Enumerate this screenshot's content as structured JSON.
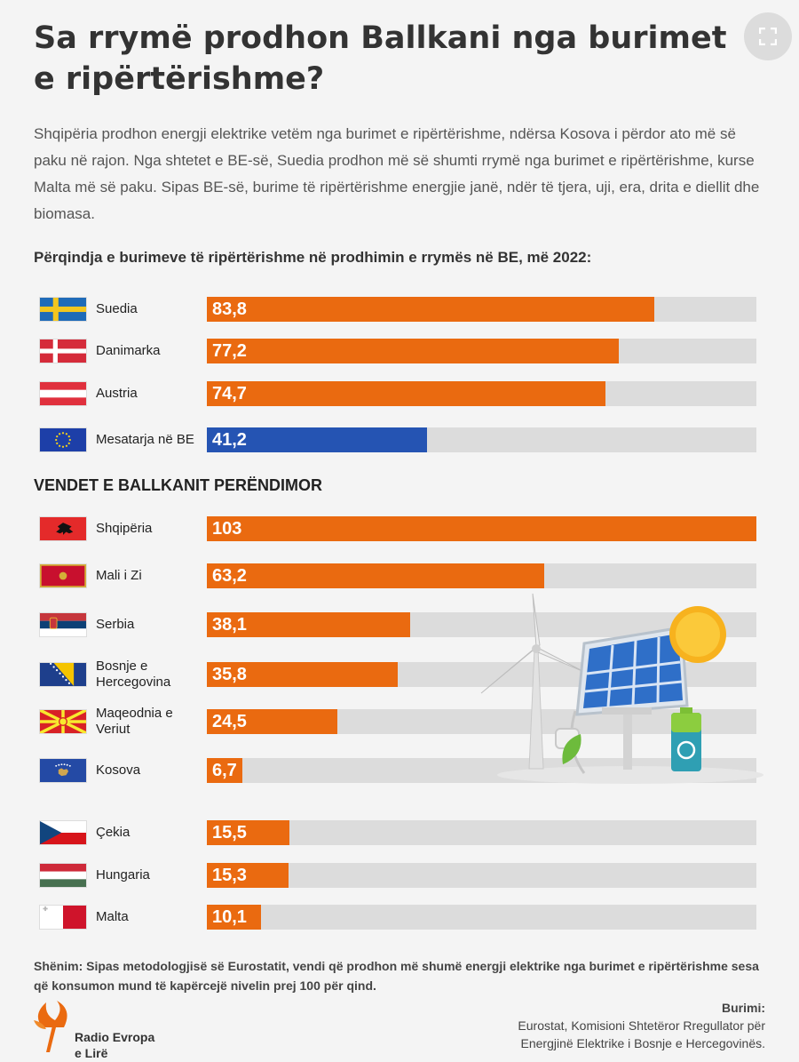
{
  "header": {
    "title": "Sa rrymë prodhon Ballkani nga burimet e ripërtërishme?",
    "intro": "Shqipëria prodhon energji elektrike vetëm nga burimet e ripërtërishme, ndërsa Kosova i përdor ato më së paku në rajon. Nga shtetet e BE-së, Suedia prodhon më së shumti rrymë nga burimet e ripërtërishme, kurse Malta më së paku. Sipas BE-së, burime të ripërtërishme energjie janë, ndër të tjera, uji, era, drita e diellit dhe biomasa."
  },
  "chart_data": {
    "type": "bar",
    "orientation": "horizontal",
    "title": "Përqindja e burimeve të ripërtërishme në prodhimin e rrymës në BE, më 2022:",
    "section_heading": "VENDET E BALLKANIT PERËNDIMOR",
    "xlim": [
      0,
      103
    ],
    "grid": false,
    "groups": [
      {
        "name": "",
        "bars": [
          {
            "label": "Suedia",
            "value": 83.8,
            "display": "83,8",
            "flag": "sweden-flag",
            "color": "#ea6a10"
          },
          {
            "label": "Danimarka",
            "value": 77.2,
            "display": "77,2",
            "flag": "denmark-flag",
            "color": "#ea6a10"
          },
          {
            "label": "Austria",
            "value": 74.7,
            "display": "74,7",
            "flag": "austria-flag",
            "color": "#ea6a10"
          },
          {
            "label": "Mesatarja në BE",
            "value": 41.2,
            "display": "41,2",
            "flag": "eu-flag",
            "color": "#2554b3"
          }
        ]
      },
      {
        "name": "VENDET E BALLKANIT PERËNDIMOR",
        "bars": [
          {
            "label": "Shqipëria",
            "value": 103,
            "display": "103",
            "flag": "albania-flag",
            "color": "#ea6a10"
          },
          {
            "label": "Mali i Zi",
            "value": 63.2,
            "display": "63,2",
            "flag": "montenegro-flag",
            "color": "#ea6a10"
          },
          {
            "label": "Serbia",
            "value": 38.1,
            "display": "38,1",
            "flag": "serbia-flag",
            "color": "#ea6a10"
          },
          {
            "label": "Bosnje e Hercegovina",
            "value": 35.8,
            "display": "35,8",
            "flag": "bosnia-flag",
            "color": "#ea6a10"
          },
          {
            "label": "Maqeodnia e Veriut",
            "value": 24.5,
            "display": "24,5",
            "flag": "north-macedonia-flag",
            "color": "#ea6a10"
          },
          {
            "label": "Kosova",
            "value": 6.7,
            "display": "6,7",
            "flag": "kosovo-flag",
            "color": "#ea6a10"
          }
        ]
      },
      {
        "name": "",
        "bars": [
          {
            "label": "Çekia",
            "value": 15.5,
            "display": "15,5",
            "flag": "czechia-flag",
            "color": "#ea6a10"
          },
          {
            "label": "Hungaria",
            "value": 15.3,
            "display": "15,3",
            "flag": "hungary-flag",
            "color": "#ea6a10"
          },
          {
            "label": "Malta",
            "value": 10.1,
            "display": "10,1",
            "flag": "malta-flag",
            "color": "#ea6a10"
          }
        ]
      }
    ]
  },
  "footer": {
    "note": "Shënim: Sipas metodologjisë së Eurostatit, vendi që prodhon më shumë energji elektrike nga burimet e ripërtërishme sesa që konsumon mund të kapërcejë nivelin prej 100 për qind.",
    "logo_line1": "Radio Evropa",
    "logo_line2": "e Lirë",
    "source_label": "Burimi:",
    "source_line1": "Eurostat, Komisioni Shtetëror Rregullator për",
    "source_line2": "Energjinë Elektrike i Bosnje e Hercegovinës."
  },
  "icons": {
    "expand": "expand-icon",
    "illustration": "renewable-energy-illustration",
    "logo": "torch-logo-icon"
  }
}
